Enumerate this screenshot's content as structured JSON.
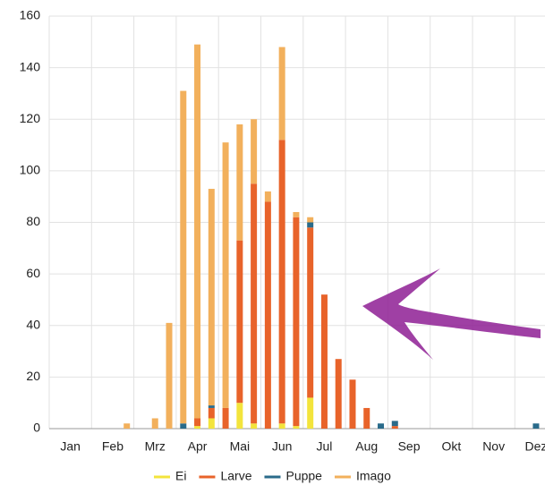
{
  "chart_data": {
    "type": "stacked-bar",
    "categories": [
      null,
      "Jan",
      null,
      null,
      "Feb",
      null,
      null,
      "Mrz",
      null,
      null,
      "Apr",
      null,
      null,
      "Mai",
      null,
      null,
      "Jun",
      null,
      null,
      "Jul",
      null,
      null,
      "Aug",
      null,
      null,
      "Sep",
      null,
      null,
      "Okt",
      null,
      null,
      "Nov",
      null,
      null,
      "Dez",
      null
    ],
    "series": [
      {
        "name": "Ei",
        "color": "#f3e43c",
        "values": [
          0,
          0,
          0,
          0,
          0,
          0,
          0,
          0,
          0,
          0,
          1,
          4,
          0,
          10,
          2,
          0,
          2,
          1,
          12,
          0,
          0,
          0,
          0,
          0,
          0,
          0,
          0,
          0,
          0,
          0,
          0,
          0,
          0,
          0,
          0,
          0
        ]
      },
      {
        "name": "Larve",
        "color": "#e8632a",
        "values": [
          0,
          0,
          0,
          0,
          0,
          0,
          0,
          0,
          0,
          0,
          3,
          4,
          8,
          63,
          93,
          88,
          110,
          81,
          66,
          52,
          27,
          19,
          8,
          0,
          1,
          0,
          0,
          0,
          0,
          0,
          0,
          0,
          0,
          0,
          0,
          0
        ]
      },
      {
        "name": "Puppe",
        "color": "#2a6b8a",
        "values": [
          0,
          0,
          0,
          0,
          0,
          0,
          0,
          0,
          0,
          2,
          0,
          1,
          0,
          0,
          0,
          0,
          0,
          0,
          2,
          0,
          0,
          0,
          0,
          2,
          2,
          0,
          0,
          0,
          0,
          0,
          0,
          0,
          0,
          0,
          2,
          0
        ]
      },
      {
        "name": "Imago",
        "color": "#f2b05c",
        "values": [
          0,
          0,
          0,
          0,
          0,
          2,
          0,
          4,
          41,
          129,
          145,
          84,
          103,
          45,
          25,
          4,
          36,
          2,
          2,
          0,
          0,
          0,
          0,
          0,
          0,
          0,
          0,
          0,
          0,
          0,
          0,
          0,
          0,
          0,
          0,
          0
        ]
      }
    ],
    "ylim": [
      0,
      160
    ],
    "yticks": [
      0,
      20,
      40,
      60,
      80,
      100,
      120,
      140,
      160
    ],
    "grid": true,
    "legend": "bottom"
  }
}
